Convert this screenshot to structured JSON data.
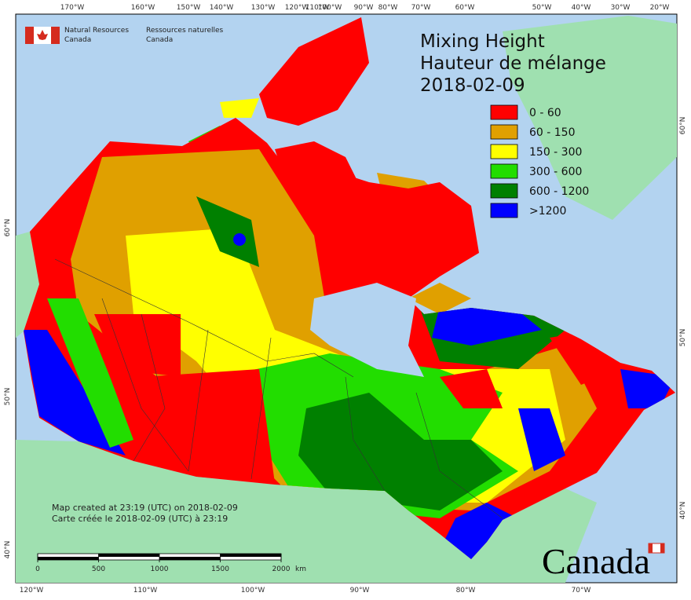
{
  "header": {
    "agency_en": [
      "Natural Resources",
      "Canada"
    ],
    "agency_fr": [
      "Ressources naturelles",
      "Canada"
    ]
  },
  "title": [
    "Mixing Height",
    "Hauteur de mélange",
    "2018-02-09"
  ],
  "legend": [
    {
      "label": "0 - 60",
      "color": "#ff0000"
    },
    {
      "label": "60 - 150",
      "color": "#e0a000"
    },
    {
      "label": "150 - 300",
      "color": "#ffff00"
    },
    {
      "label": "300 - 600",
      "color": "#22dd00"
    },
    {
      "label": "600 - 1200",
      "color": "#008000"
    },
    {
      "label": ">1200",
      "color": "#0000ff"
    }
  ],
  "graticule": {
    "top": [
      "170°W",
      "160°W",
      "150°W",
      "140°W",
      "130°W",
      "120°W",
      "110°W",
      "100°W",
      "90°W",
      "80°W",
      "70°W",
      "60°W",
      "50°W",
      "40°W",
      "30°W",
      "20°W"
    ],
    "bottom": [
      "120°W",
      "110°W",
      "100°W",
      "90°W",
      "80°W",
      "70°W"
    ],
    "left": [
      "60°N",
      "50°N",
      "40°N"
    ],
    "right": [
      "60°N",
      "50°N",
      "40°N"
    ]
  },
  "notes": [
    "Map created at 23:19 (UTC) on 2018-02-09",
    "Carte créée le 2018-02-09 (UTC) à 23:19"
  ],
  "scale_bar": {
    "ticks": [
      0,
      500,
      1000,
      1500,
      2000
    ],
    "unit": "km"
  },
  "wordmark": "Canada"
}
